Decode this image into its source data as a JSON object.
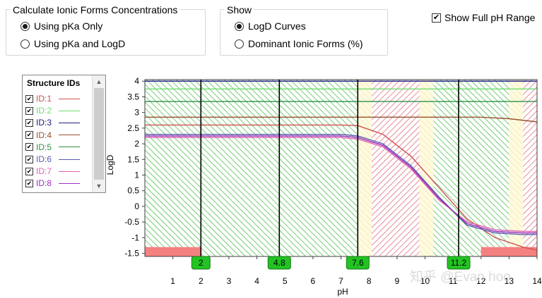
{
  "calc_group": {
    "title": "Calculate Ionic Forms Concentrations",
    "options": [
      {
        "label": "Using pKa Only",
        "selected": true
      },
      {
        "label": "Using pKa and LogD",
        "selected": false
      }
    ]
  },
  "show_group": {
    "title": "Show",
    "options": [
      {
        "label": "LogD Curves",
        "selected": true
      },
      {
        "label": "Dominant Ionic Forms (%)",
        "selected": false
      }
    ]
  },
  "full_range": {
    "label": "Show Full pH Range",
    "checked": true,
    "mark": "✔"
  },
  "legend": {
    "title": "Structure IDs",
    "items": [
      {
        "label": "ID:1",
        "color": "#d05050"
      },
      {
        "label": "ID:2",
        "color": "#70dc70"
      },
      {
        "label": "ID:3",
        "color": "#1a1a80"
      },
      {
        "label": "ID:4",
        "color": "#9a5030"
      },
      {
        "label": "ID:5",
        "color": "#2e9048"
      },
      {
        "label": "ID:6",
        "color": "#5a5ab0"
      },
      {
        "label": "ID:7",
        "color": "#e060b0"
      },
      {
        "label": "ID:8",
        "color": "#9a30c0"
      }
    ],
    "check_mark": "✔",
    "scroll_up": "▲",
    "scroll_down": "▼"
  },
  "chart_data": {
    "type": "line",
    "xlabel": "pH",
    "ylabel": "LogD",
    "xlim": [
      0,
      14
    ],
    "ylim": [
      -1.6,
      4.05
    ],
    "x_ticks": [
      "1",
      "2",
      "3",
      "4",
      "5",
      "6",
      "7",
      "8",
      "9",
      "10",
      "11",
      "12",
      "13",
      "14"
    ],
    "y_ticks": [
      "4",
      "3.5",
      "3",
      "2.5",
      "2",
      "1.5",
      "1",
      "0.5",
      "0",
      "-0.5",
      "-1",
      "-1.5"
    ],
    "pka_markers": [
      {
        "label": "2",
        "x": 2
      },
      {
        "label": "4.8",
        "x": 4.8
      },
      {
        "label": "7.6",
        "x": 7.6
      },
      {
        "label": "11.2",
        "x": 11.2
      }
    ],
    "regions": [
      {
        "from": 0,
        "to": 7.6,
        "color": "green"
      },
      {
        "from": 7.6,
        "to": 8.1,
        "color": "yellow"
      },
      {
        "from": 8.1,
        "to": 9.8,
        "color": "red"
      },
      {
        "from": 9.8,
        "to": 10.3,
        "color": "yellow"
      },
      {
        "from": 10.3,
        "to": 13.0,
        "color": "green"
      },
      {
        "from": 13.0,
        "to": 13.5,
        "color": "yellow"
      },
      {
        "from": 13.5,
        "to": 14,
        "color": "red"
      }
    ],
    "bars": [
      {
        "from": 0,
        "to": 2,
        "y_from": -1.6,
        "y_to": -1.3
      },
      {
        "from": 12,
        "to": 14,
        "y_from": -1.6,
        "y_to": -1.3
      }
    ],
    "series": [
      {
        "name": "ID:1",
        "color": "#d05050",
        "x": [
          0,
          7,
          7.6,
          8.5,
          9.5,
          10.5,
          11.5,
          12.5,
          13.5,
          14
        ],
        "y": [
          2.6,
          2.6,
          2.58,
          2.3,
          1.6,
          0.6,
          -0.4,
          -1.0,
          -1.3,
          -1.4
        ]
      },
      {
        "name": "ID:2",
        "color": "#70dc70",
        "x": [
          0,
          14
        ],
        "y": [
          3.75,
          3.75
        ]
      },
      {
        "name": "ID:3",
        "color": "#1a1a80",
        "x": [
          0,
          14
        ],
        "y": [
          4.0,
          4.0
        ]
      },
      {
        "name": "ID:4",
        "color": "#9a5030",
        "x": [
          0,
          12,
          13,
          14
        ],
        "y": [
          2.85,
          2.85,
          2.8,
          2.7
        ]
      },
      {
        "name": "ID:5",
        "color": "#2e9048",
        "x": [
          0,
          14
        ],
        "y": [
          3.35,
          3.35
        ]
      },
      {
        "name": "ID:6",
        "color": "#5a5ab0",
        "x": [
          0,
          7,
          7.6,
          8.5,
          9.5,
          10.5,
          11.5,
          12.5,
          13.5,
          14
        ],
        "y": [
          2.3,
          2.3,
          2.25,
          2.0,
          1.3,
          0.3,
          -0.6,
          -0.85,
          -0.9,
          -0.9
        ]
      },
      {
        "name": "ID:7",
        "color": "#e060b0",
        "x": [
          0,
          7,
          7.6,
          8.5,
          9.5,
          10.5,
          11.5,
          12.5,
          13.5,
          14
        ],
        "y": [
          2.2,
          2.2,
          2.15,
          1.9,
          1.2,
          0.2,
          -0.5,
          -0.75,
          -0.8,
          -0.8
        ]
      },
      {
        "name": "ID:8",
        "color": "#9a30c0",
        "x": [
          0,
          7,
          7.6,
          8.5,
          9.5,
          10.5,
          11.5,
          12.5,
          13.5,
          14
        ],
        "y": [
          2.25,
          2.25,
          2.2,
          1.95,
          1.25,
          0.25,
          -0.55,
          -0.8,
          -0.85,
          -0.85
        ]
      }
    ]
  },
  "watermark": "知乎 @Evan hoo"
}
